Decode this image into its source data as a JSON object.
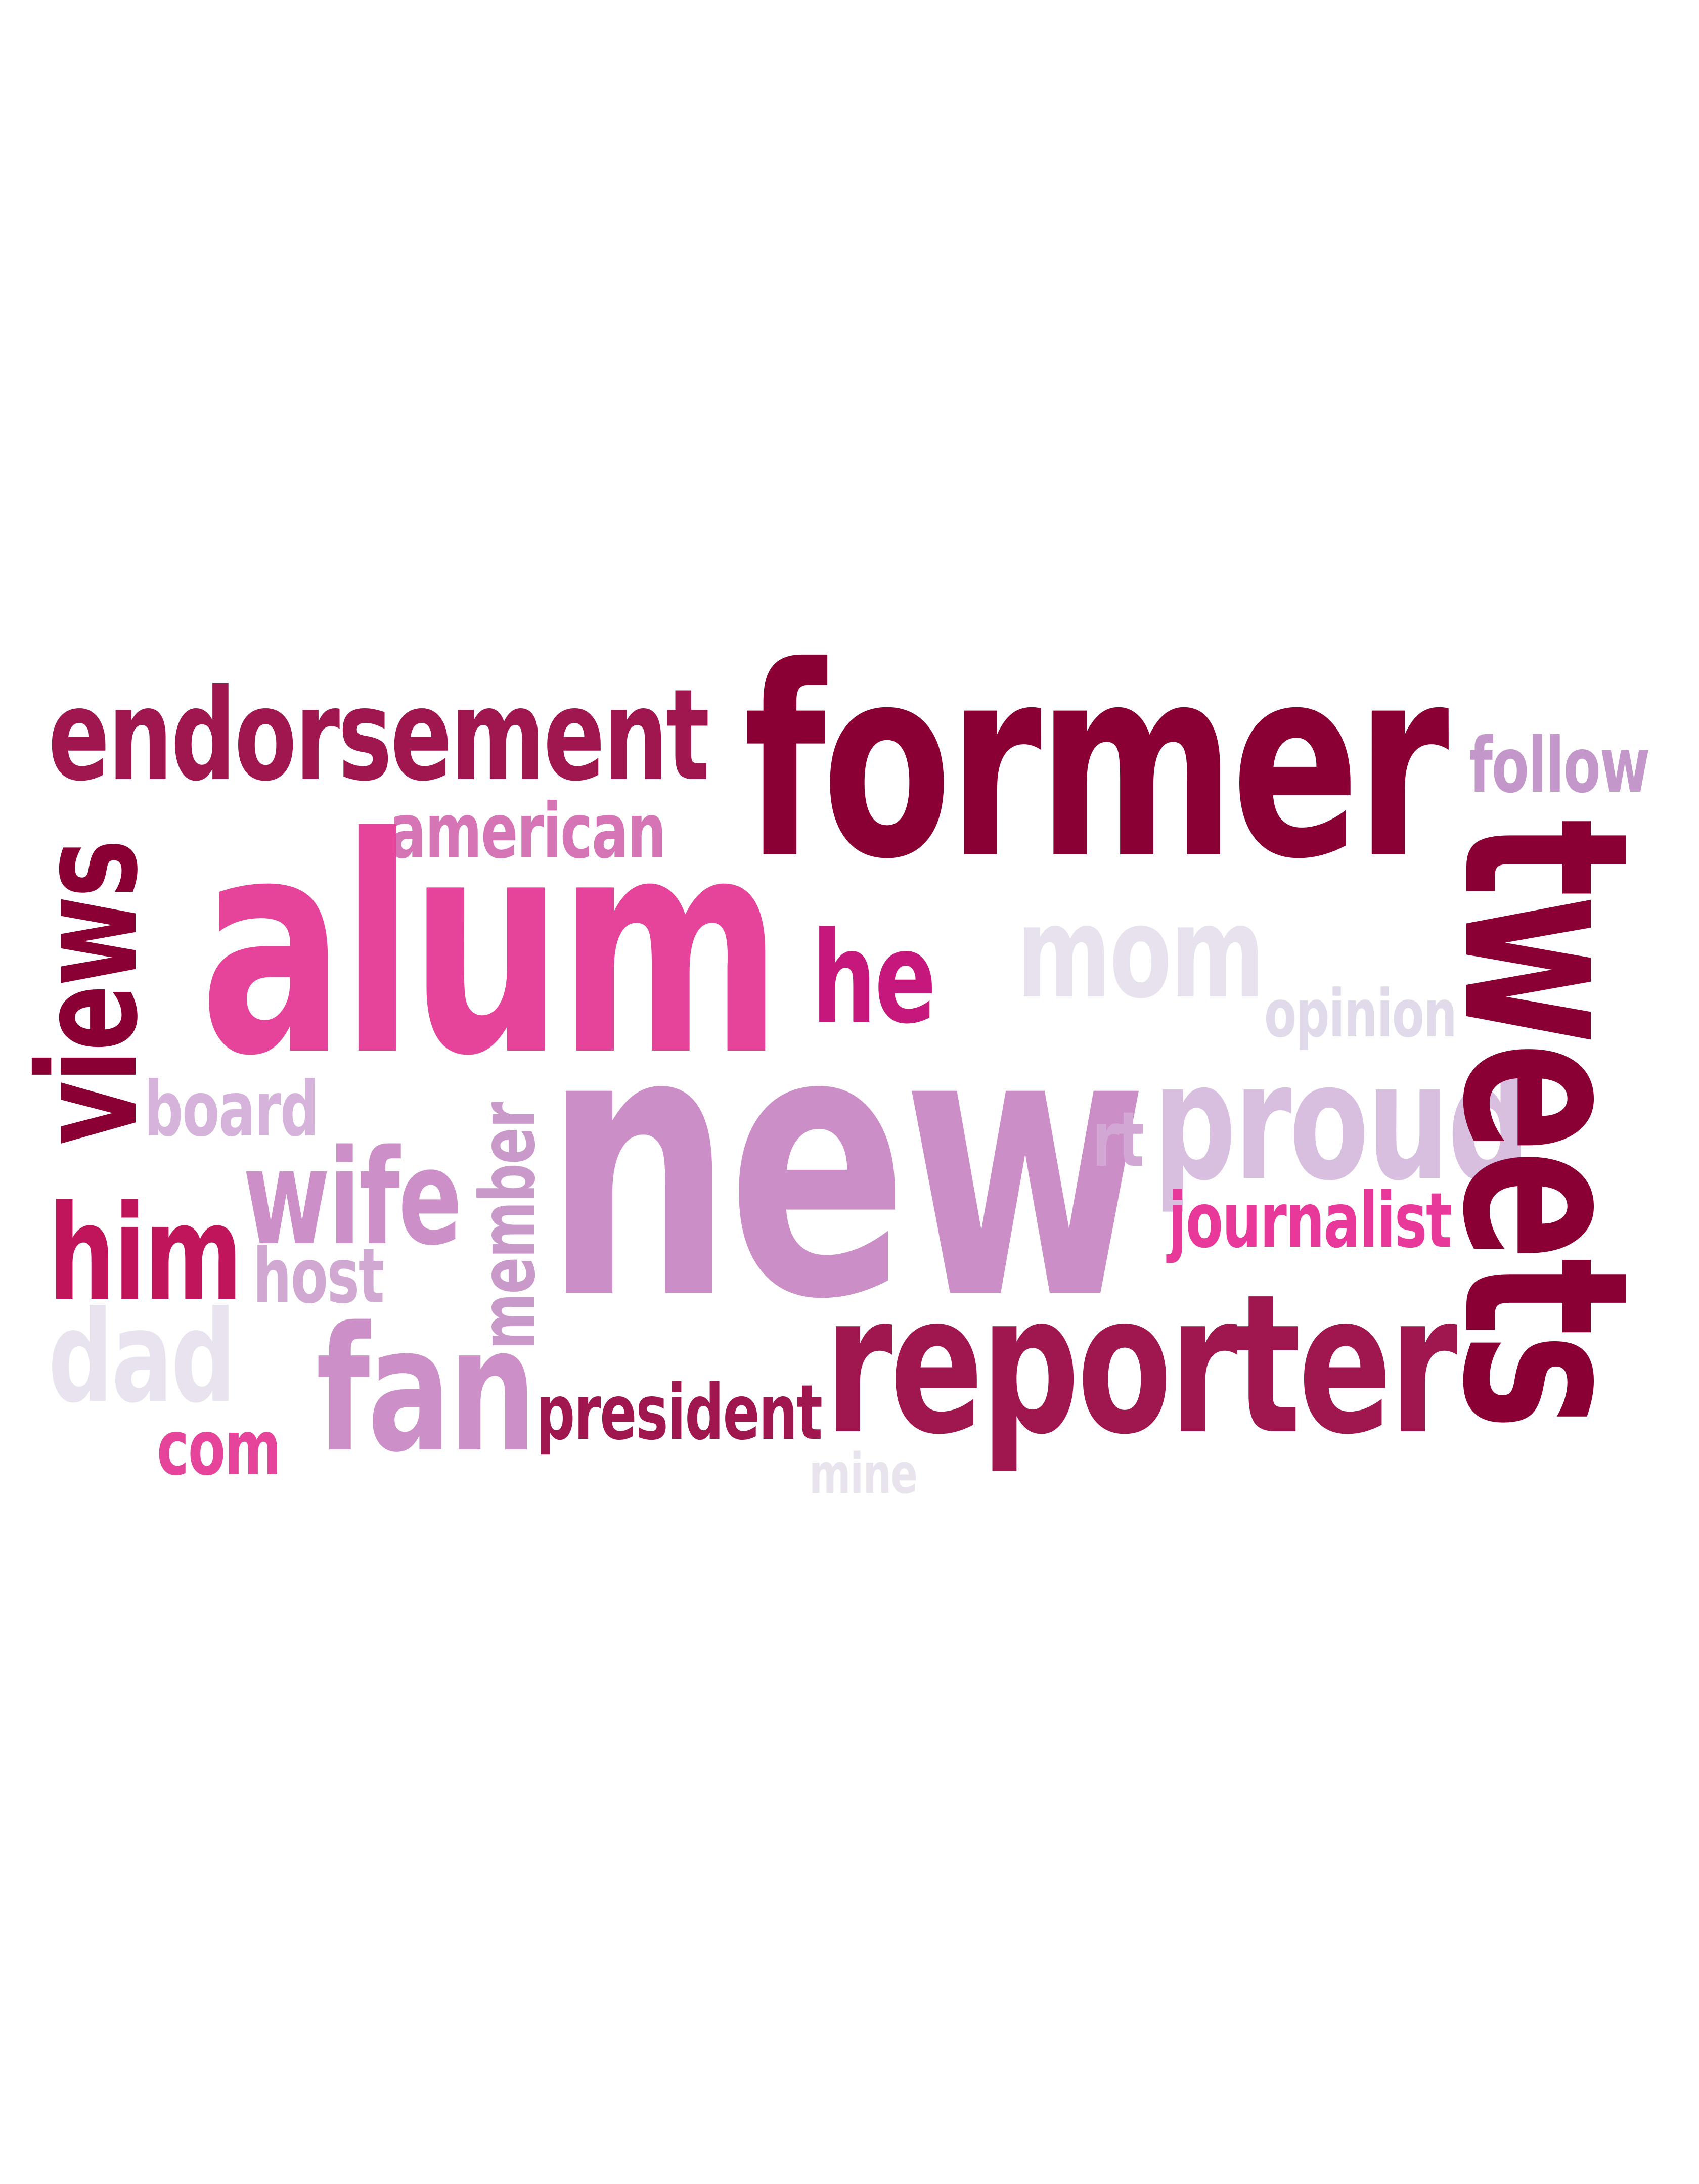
{
  "words": {
    "endorsement": {
      "text": "endorsement",
      "color": "#A0164E"
    },
    "former": {
      "text": "former",
      "color": "#8B0034"
    },
    "follow": {
      "text": "follow",
      "color": "#C497CB"
    },
    "american": {
      "text": "american",
      "color": "#D675B6"
    },
    "alum": {
      "text": "alum",
      "color": "#E5449A"
    },
    "he": {
      "text": "he",
      "color": "#C6177C"
    },
    "mom": {
      "text": "mom",
      "color": "#E8E2EE"
    },
    "opinion": {
      "text": "opinion",
      "color": "#E0DAEA"
    },
    "views": {
      "text": "views",
      "color": "#8B0034"
    },
    "board": {
      "text": "board",
      "color": "#D5B3DA"
    },
    "new": {
      "text": "new",
      "color": "#CB8EC6"
    },
    "rt": {
      "text": "rt",
      "color": "#D3A7D3"
    },
    "proud": {
      "text": "proud",
      "color": "#D8BFE0"
    },
    "wife": {
      "text": "wife",
      "color": "#CC8FC7"
    },
    "member": {
      "text": "member",
      "color": "#C99AC9"
    },
    "journalist": {
      "text": "journalist",
      "color": "#E8389A"
    },
    "him": {
      "text": "him",
      "color": "#C0155A"
    },
    "host": {
      "text": "host",
      "color": "#D1A8D2"
    },
    "tweets": {
      "text": "tweets",
      "color": "#8B0034"
    },
    "dad": {
      "text": "dad",
      "color": "#E8E3EF"
    },
    "fan": {
      "text": "fan",
      "color": "#CC8FC7"
    },
    "president": {
      "text": "president",
      "color": "#A0164E"
    },
    "reporter": {
      "text": "reporter",
      "color": "#A0164E"
    },
    "com": {
      "text": "com",
      "color": "#E5449A"
    },
    "mine": {
      "text": "mine",
      "color": "#E9E3EE"
    }
  }
}
